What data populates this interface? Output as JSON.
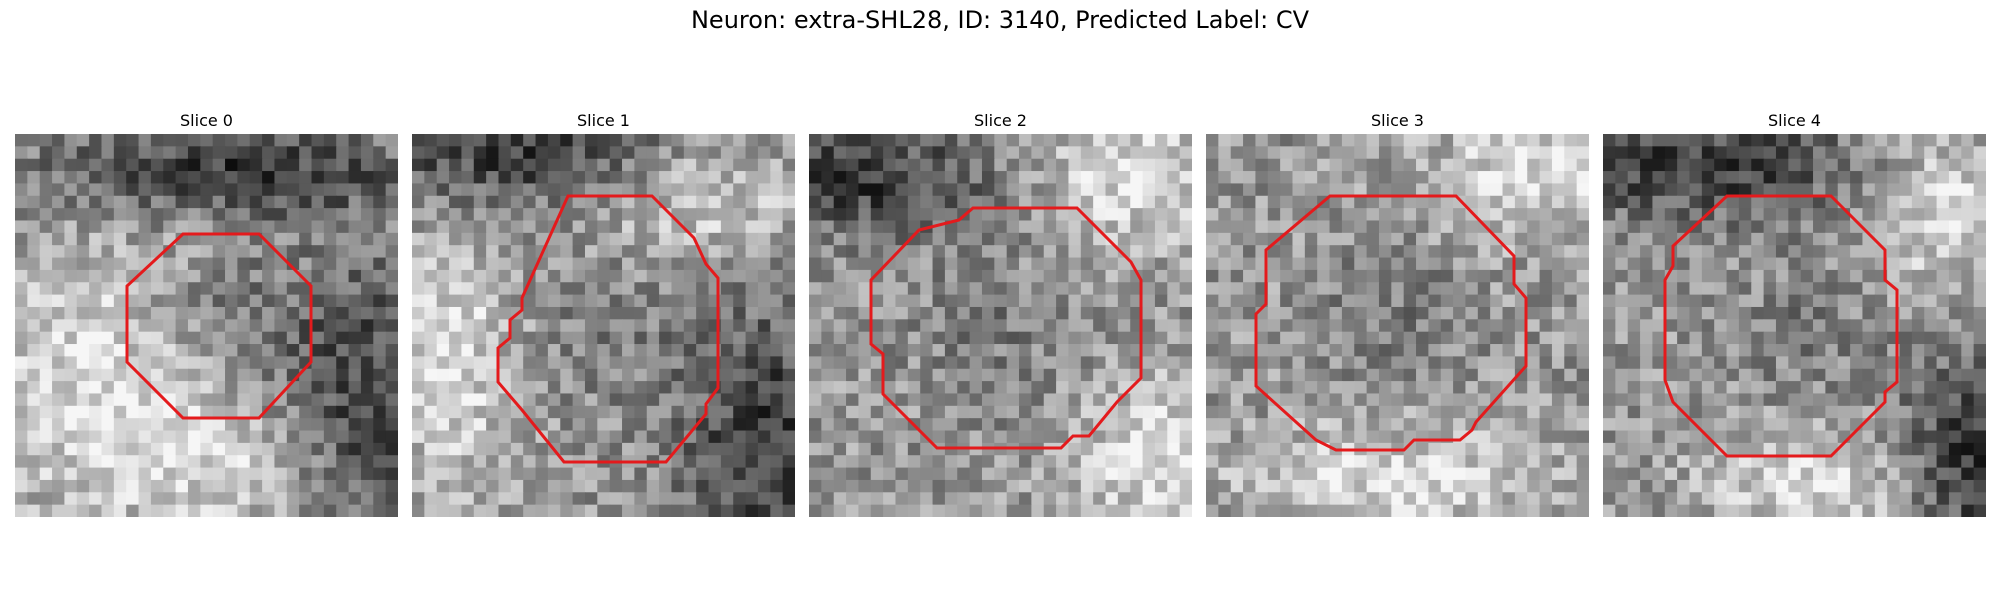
{
  "figure": {
    "title": "Neuron: extra-SHL28, ID: 3140, Predicted Label: CV"
  },
  "slices": [
    {
      "title": "Slice 0"
    },
    {
      "title": "Slice 1"
    },
    {
      "title": "Slice 2"
    },
    {
      "title": "Slice 3"
    },
    {
      "title": "Slice 4"
    }
  ],
  "colors": {
    "contour": "#e41a1c"
  }
}
